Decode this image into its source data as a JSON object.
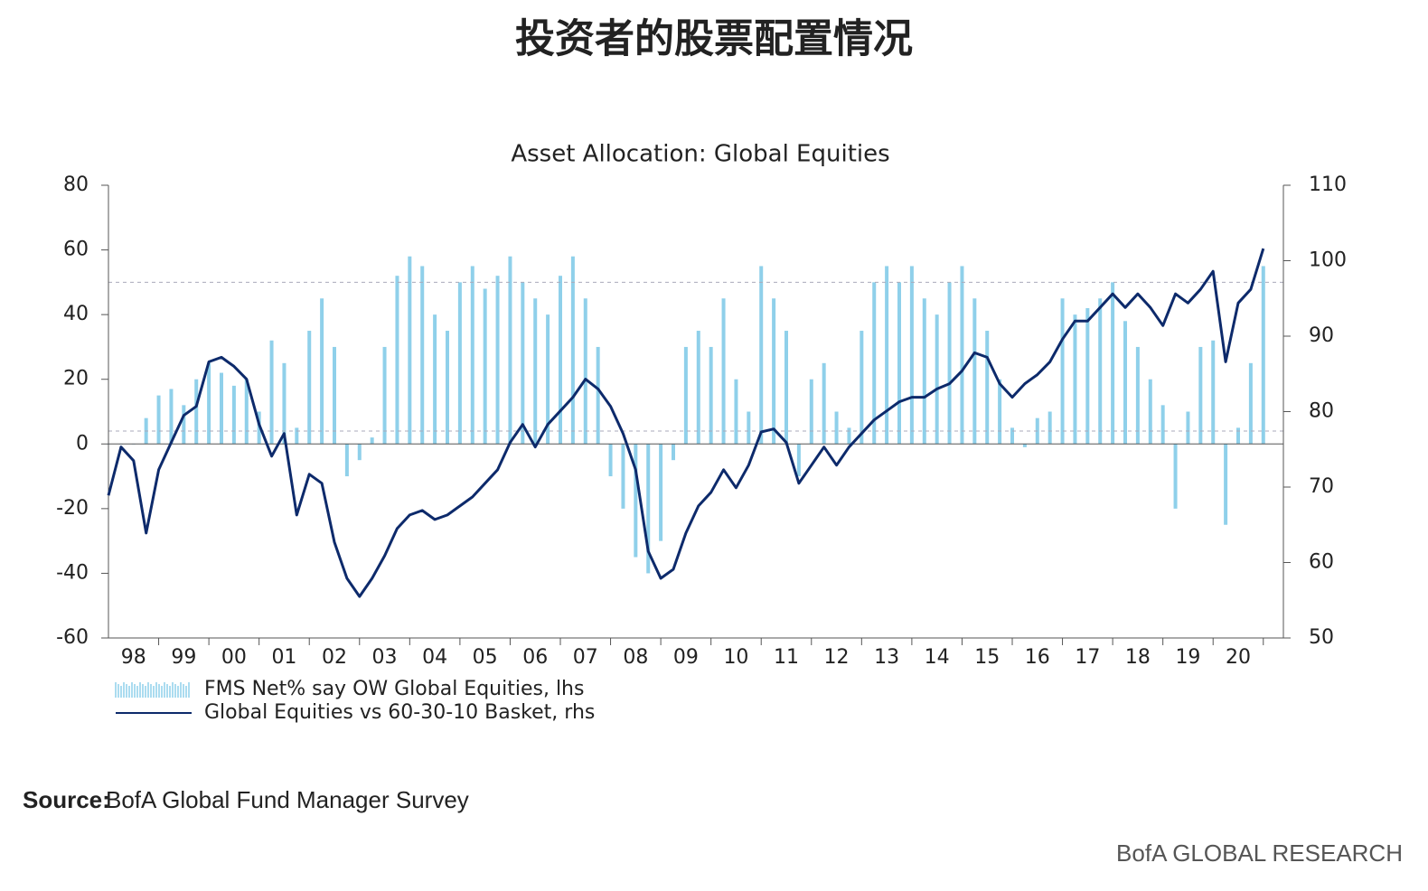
{
  "title": "投资者的股票配置情况",
  "chart_data": {
    "type": "bar-line",
    "title": "Asset Allocation: Global Equities",
    "x": [
      1998.0,
      1998.25,
      1998.5,
      1998.75,
      1999.0,
      1999.25,
      1999.5,
      1999.75,
      2000.0,
      2000.25,
      2000.5,
      2000.75,
      2001.0,
      2001.25,
      2001.5,
      2001.75,
      2002.0,
      2002.25,
      2002.5,
      2002.75,
      2003.0,
      2003.25,
      2003.5,
      2003.75,
      2004.0,
      2004.25,
      2004.5,
      2004.75,
      2005.0,
      2005.25,
      2005.5,
      2005.75,
      2006.0,
      2006.25,
      2006.5,
      2006.75,
      2007.0,
      2007.25,
      2007.5,
      2007.75,
      2008.0,
      2008.25,
      2008.5,
      2008.75,
      2009.0,
      2009.25,
      2009.5,
      2009.75,
      2010.0,
      2010.25,
      2010.5,
      2010.75,
      2011.0,
      2011.25,
      2011.5,
      2011.75,
      2012.0,
      2012.25,
      2012.5,
      2012.75,
      2013.0,
      2013.25,
      2013.5,
      2013.75,
      2014.0,
      2014.25,
      2014.5,
      2014.75,
      2015.0,
      2015.25,
      2015.5,
      2015.75,
      2016.0,
      2016.25,
      2016.5,
      2016.75,
      2017.0,
      2017.25,
      2017.5,
      2017.75,
      2018.0,
      2018.25,
      2018.5,
      2018.75,
      2019.0,
      2019.25,
      2019.5,
      2019.75,
      2020.0,
      2020.25,
      2020.5,
      2020.75,
      2021.0
    ],
    "series": [
      {
        "name": "FMS Net% say OW Global Equities, lhs",
        "type": "bar",
        "color": "#8fd0ea",
        "values": [
          0,
          0,
          0,
          8,
          15,
          17,
          12,
          20,
          25,
          22,
          18,
          20,
          10,
          32,
          25,
          5,
          35,
          45,
          30,
          -10,
          -5,
          2,
          30,
          52,
          58,
          55,
          40,
          35,
          50,
          55,
          48,
          52,
          58,
          50,
          45,
          40,
          52,
          58,
          45,
          30,
          -10,
          -20,
          -35,
          -40,
          -30,
          -5,
          30,
          35,
          30,
          45,
          20,
          10,
          55,
          45,
          35,
          -10,
          20,
          25,
          10,
          5,
          35,
          50,
          55,
          50,
          55,
          45,
          40,
          50,
          55,
          45,
          35,
          20,
          5,
          -1,
          8,
          10,
          45,
          40,
          42,
          45,
          50,
          38,
          30,
          20,
          12,
          -20,
          10,
          30,
          32,
          -25,
          5,
          25,
          55
        ]
      },
      {
        "name": "Global Equities vs 60-30-10 Basket, rhs",
        "type": "line",
        "axis": "y2",
        "color": "#0d2a6b",
        "values": [
          68.9,
          75.3,
          73.5,
          63.9,
          72.3,
          75.9,
          79.5,
          80.7,
          86.6,
          87.2,
          86,
          84.3,
          78.3,
          74.1,
          77.1,
          66.3,
          71.7,
          70.5,
          62.7,
          57.9,
          55.5,
          57.9,
          60.9,
          64.5,
          66.3,
          66.9,
          65.7,
          66.3,
          67.5,
          68.7,
          70.5,
          72.3,
          75.9,
          78.3,
          75.3,
          78.3,
          80.1,
          81.9,
          84.3,
          83,
          80.7,
          77.1,
          72.3,
          61.5,
          57.9,
          59.1,
          63.9,
          67.5,
          69.3,
          72.3,
          69.9,
          72.9,
          77.3,
          77.7,
          75.9,
          70.5,
          72.9,
          75.3,
          72.9,
          75.3,
          77.1,
          78.9,
          80.1,
          81.3,
          81.9,
          81.9,
          83,
          83.7,
          85.4,
          87.8,
          87.2,
          83.7,
          81.9,
          83.7,
          84.9,
          86.6,
          89.6,
          92,
          92,
          93.8,
          95.6,
          93.8,
          95.6,
          93.8,
          91.4,
          95.6,
          94.4,
          96.2,
          98.6,
          86.6,
          94.4,
          96.2,
          101.6
        ]
      }
    ],
    "hlines": [
      50,
      4
    ],
    "xlim": [
      1998,
      2021.4
    ],
    "xticks": [
      {
        "value": 1998.5,
        "label": "98"
      },
      {
        "value": 1999.5,
        "label": "99"
      },
      {
        "value": 2000.5,
        "label": "00"
      },
      {
        "value": 2001.5,
        "label": "01"
      },
      {
        "value": 2002.5,
        "label": "02"
      },
      {
        "value": 2003.5,
        "label": "03"
      },
      {
        "value": 2004.5,
        "label": "04"
      },
      {
        "value": 2005.5,
        "label": "05"
      },
      {
        "value": 2006.5,
        "label": "06"
      },
      {
        "value": 2007.5,
        "label": "07"
      },
      {
        "value": 2008.5,
        "label": "08"
      },
      {
        "value": 2009.5,
        "label": "09"
      },
      {
        "value": 2010.5,
        "label": "10"
      },
      {
        "value": 2011.5,
        "label": "11"
      },
      {
        "value": 2012.5,
        "label": "12"
      },
      {
        "value": 2013.5,
        "label": "13"
      },
      {
        "value": 2014.5,
        "label": "14"
      },
      {
        "value": 2015.5,
        "label": "15"
      },
      {
        "value": 2016.5,
        "label": "16"
      },
      {
        "value": 2017.5,
        "label": "17"
      },
      {
        "value": 2018.5,
        "label": "18"
      },
      {
        "value": 2019.5,
        "label": "19"
      },
      {
        "value": 2020.5,
        "label": "20"
      }
    ],
    "ylim": [
      -60,
      80
    ],
    "yticks": [
      -60,
      -40,
      -20,
      0,
      20,
      40,
      60,
      80
    ],
    "y2lim": [
      50,
      110
    ],
    "y2ticks": [
      50,
      60,
      70,
      80,
      90,
      100,
      110
    ]
  },
  "source": {
    "label": "Source:",
    "text": "BofA Global Fund Manager Survey"
  },
  "brand": "BofA GLOBAL RESEARCH"
}
